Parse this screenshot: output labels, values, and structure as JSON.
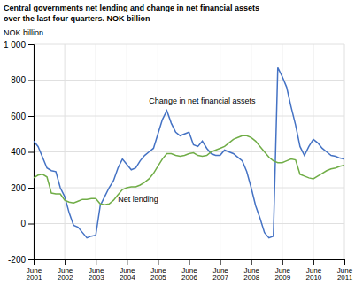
{
  "chart_data": {
    "type": "line",
    "title": "Central governments net lending and change in net financial assets",
    "subtitle": "over the last four quarters. NOK billion",
    "ylabel": "NOK billion",
    "categories": [
      "June\n2001",
      null,
      null,
      null,
      null,
      null,
      null,
      "June\n2002",
      null,
      null,
      null,
      null,
      null,
      null,
      "June\n2003",
      null,
      null,
      null,
      null,
      null,
      null,
      "June\n2004",
      null,
      null,
      null,
      null,
      null,
      null,
      "June\n2005",
      null,
      null,
      null,
      null,
      null,
      null,
      "June\n2006",
      null,
      null,
      null,
      null,
      null,
      null,
      "June\n2007",
      null,
      null,
      null,
      null,
      null,
      null,
      "June\n2008",
      null,
      null,
      null,
      null,
      null,
      null,
      "June\n2009",
      null,
      null,
      null,
      null,
      null,
      null,
      "June\n2010",
      null,
      null,
      null,
      null,
      null,
      null,
      "June\n2011"
    ],
    "series": [
      {
        "name": "Change in net financial assets",
        "color": "#4472c4",
        "values": [
          460,
          430,
          370,
          310,
          295,
          290,
          200,
          150,
          60,
          -10,
          -20,
          -50,
          -80,
          -70,
          -65,
          100,
          150,
          200,
          240,
          310,
          360,
          330,
          300,
          310,
          350,
          380,
          400,
          420,
          500,
          580,
          630,
          560,
          510,
          490,
          500,
          510,
          440,
          430,
          460,
          420,
          390,
          380,
          380,
          410,
          400,
          390,
          370,
          350,
          290,
          200,
          100,
          30,
          -50,
          -80,
          -70,
          870,
          820,
          760,
          650,
          550,
          430,
          380,
          430,
          470,
          450,
          420,
          400,
          380,
          375,
          365,
          360
        ]
      },
      {
        "name": "Net lending",
        "color": "#70ad47",
        "values": [
          255,
          270,
          275,
          260,
          170,
          165,
          165,
          130,
          120,
          115,
          125,
          135,
          135,
          140,
          140,
          110,
          105,
          110,
          130,
          160,
          190,
          200,
          205,
          205,
          215,
          230,
          250,
          280,
          320,
          360,
          390,
          390,
          380,
          375,
          380,
          390,
          395,
          380,
          375,
          380,
          400,
          410,
          420,
          430,
          450,
          470,
          480,
          490,
          490,
          480,
          460,
          430,
          400,
          370,
          350,
          340,
          340,
          350,
          360,
          355,
          275,
          265,
          255,
          250,
          265,
          280,
          295,
          305,
          310,
          320,
          325
        ]
      }
    ],
    "ylim": [
      -200,
      1000
    ],
    "yticks": [
      -200,
      0,
      200,
      400,
      600,
      800,
      {
        "value": 1000,
        "label": "1 000"
      }
    ],
    "grid": true
  }
}
